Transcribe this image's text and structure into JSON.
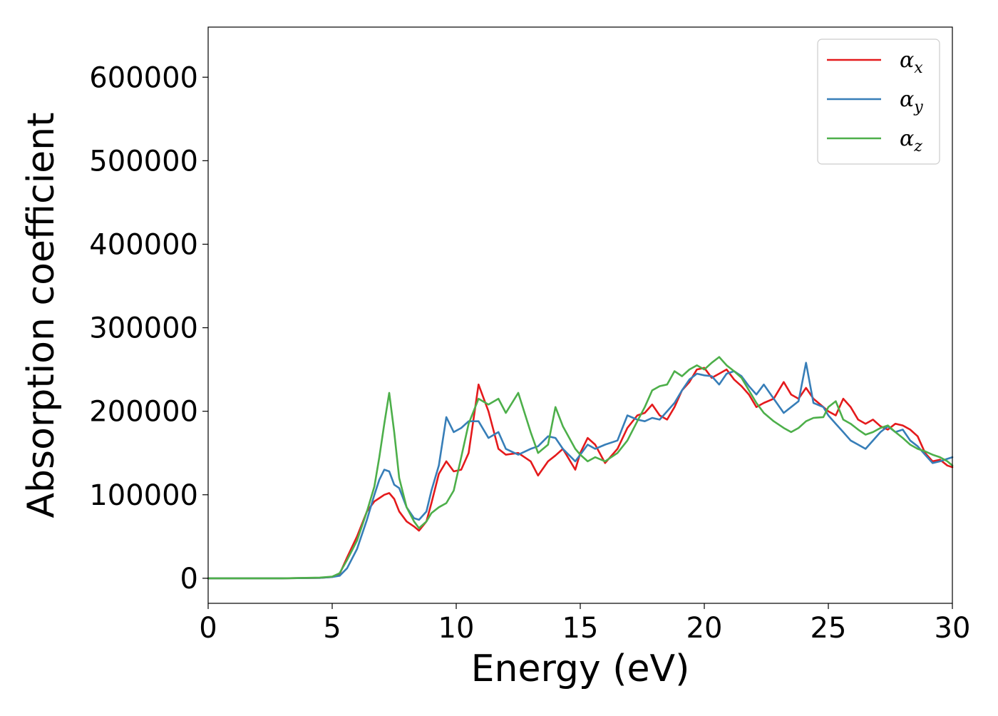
{
  "chart_data": {
    "type": "line",
    "title": "",
    "xlabel": "Energy (eV)",
    "ylabel": "Absorption coefficient",
    "xlim": [
      0,
      30
    ],
    "ylim": [
      -30000,
      660000
    ],
    "xticks": [
      0,
      5,
      10,
      15,
      20,
      25,
      30
    ],
    "xtick_labels": [
      "0",
      "5",
      "10",
      "15",
      "20",
      "25",
      "30"
    ],
    "yticks": [
      0,
      100000,
      200000,
      300000,
      400000,
      500000,
      600000
    ],
    "ytick_labels": [
      "0",
      "100000",
      "200000",
      "300000",
      "400000",
      "500000",
      "600000"
    ],
    "grid": false,
    "legend_position": "top-right",
    "series": [
      {
        "name": "αx",
        "label_base": "α",
        "label_sub": "x",
        "color": "#e41a1c",
        "x": [
          0,
          3,
          4.5,
          5.0,
          5.3,
          5.6,
          6.0,
          6.4,
          6.7,
          6.9,
          7.1,
          7.3,
          7.5,
          7.7,
          8.0,
          8.3,
          8.5,
          8.8,
          9.0,
          9.3,
          9.6,
          9.9,
          10.2,
          10.5,
          10.9,
          11.3,
          11.7,
          12.0,
          12.5,
          13.0,
          13.3,
          13.7,
          14.0,
          14.3,
          14.8,
          15.0,
          15.3,
          15.6,
          16.0,
          16.5,
          16.9,
          17.3,
          17.6,
          17.9,
          18.2,
          18.5,
          18.8,
          19.1,
          19.4,
          19.7,
          20.0,
          20.3,
          20.6,
          20.9,
          21.2,
          21.5,
          21.8,
          22.1,
          22.4,
          22.8,
          23.2,
          23.5,
          23.8,
          24.1,
          24.4,
          24.8,
          25.0,
          25.3,
          25.6,
          25.9,
          26.2,
          26.5,
          26.8,
          27.1,
          27.4,
          27.7,
          28.0,
          28.3,
          28.6,
          28.9,
          29.2,
          29.5,
          29.8,
          30.0
        ],
        "y": [
          0,
          0,
          500,
          1500,
          5000,
          25000,
          50000,
          80000,
          92000,
          96000,
          100000,
          102000,
          95000,
          80000,
          68000,
          62000,
          57000,
          68000,
          90000,
          125000,
          140000,
          128000,
          130000,
          150000,
          232000,
          200000,
          155000,
          148000,
          150000,
          140000,
          123000,
          140000,
          147000,
          155000,
          130000,
          150000,
          168000,
          160000,
          138000,
          155000,
          180000,
          195000,
          198000,
          208000,
          195000,
          190000,
          205000,
          225000,
          235000,
          250000,
          252000,
          240000,
          245000,
          250000,
          238000,
          230000,
          220000,
          205000,
          210000,
          215000,
          235000,
          220000,
          215000,
          228000,
          215000,
          205000,
          200000,
          195000,
          215000,
          205000,
          190000,
          185000,
          190000,
          182000,
          178000,
          185000,
          183000,
          178000,
          170000,
          150000,
          140000,
          142000,
          135000,
          133000
        ]
      },
      {
        "name": "αy",
        "label_base": "α",
        "label_sub": "y",
        "color": "#377eb8",
        "x": [
          0,
          3,
          4.5,
          5.0,
          5.3,
          5.6,
          6.0,
          6.4,
          6.7,
          6.9,
          7.1,
          7.3,
          7.5,
          7.7,
          8.0,
          8.3,
          8.5,
          8.8,
          9.0,
          9.3,
          9.6,
          9.9,
          10.2,
          10.5,
          10.9,
          11.3,
          11.7,
          12.0,
          12.5,
          13.0,
          13.3,
          13.7,
          14.0,
          14.3,
          14.8,
          15.0,
          15.3,
          15.6,
          16.0,
          16.5,
          16.9,
          17.3,
          17.6,
          17.9,
          18.2,
          18.5,
          18.8,
          19.1,
          19.4,
          19.7,
          20.0,
          20.3,
          20.6,
          20.9,
          21.2,
          21.5,
          21.8,
          22.1,
          22.4,
          22.8,
          23.2,
          23.5,
          23.8,
          24.1,
          24.4,
          24.8,
          25.0,
          25.3,
          25.6,
          25.9,
          26.2,
          26.5,
          26.8,
          27.1,
          27.4,
          27.7,
          28.0,
          28.3,
          28.6,
          28.9,
          29.2,
          29.5,
          29.8,
          30.0
        ],
        "y": [
          0,
          0,
          500,
          1500,
          3000,
          12000,
          35000,
          70000,
          100000,
          118000,
          130000,
          128000,
          112000,
          108000,
          85000,
          72000,
          70000,
          80000,
          105000,
          135000,
          193000,
          175000,
          180000,
          188000,
          188000,
          168000,
          175000,
          155000,
          148000,
          155000,
          158000,
          170000,
          168000,
          155000,
          140000,
          148000,
          160000,
          155000,
          160000,
          165000,
          195000,
          190000,
          188000,
          192000,
          190000,
          200000,
          210000,
          225000,
          238000,
          245000,
          243000,
          242000,
          232000,
          245000,
          248000,
          242000,
          230000,
          220000,
          232000,
          215000,
          198000,
          205000,
          212000,
          258000,
          210000,
          205000,
          195000,
          185000,
          175000,
          165000,
          160000,
          155000,
          165000,
          175000,
          182000,
          175000,
          178000,
          165000,
          158000,
          148000,
          138000,
          140000,
          143000,
          145000
        ]
      },
      {
        "name": "αz",
        "label_base": "α",
        "label_sub": "z",
        "color": "#4daf4a",
        "x": [
          0,
          3,
          4.5,
          5.0,
          5.3,
          5.6,
          6.0,
          6.4,
          6.7,
          6.9,
          7.1,
          7.3,
          7.5,
          7.7,
          8.0,
          8.3,
          8.5,
          8.8,
          9.0,
          9.3,
          9.6,
          9.9,
          10.2,
          10.5,
          10.9,
          11.3,
          11.7,
          12.0,
          12.5,
          13.0,
          13.3,
          13.7,
          14.0,
          14.3,
          14.8,
          15.0,
          15.3,
          15.6,
          16.0,
          16.5,
          16.9,
          17.3,
          17.6,
          17.9,
          18.2,
          18.5,
          18.8,
          19.1,
          19.4,
          19.7,
          20.0,
          20.3,
          20.6,
          20.9,
          21.2,
          21.5,
          21.8,
          22.1,
          22.4,
          22.8,
          23.2,
          23.5,
          23.8,
          24.1,
          24.4,
          24.8,
          25.0,
          25.3,
          25.6,
          25.9,
          26.2,
          26.5,
          26.8,
          27.1,
          27.4,
          27.7,
          28.0,
          28.3,
          28.6,
          28.9,
          29.2,
          29.5,
          29.8,
          30.0
        ],
        "y": [
          0,
          0,
          800,
          2000,
          6000,
          22000,
          45000,
          80000,
          110000,
          145000,
          185000,
          222000,
          175000,
          120000,
          85000,
          68000,
          60000,
          68000,
          78000,
          85000,
          90000,
          105000,
          145000,
          185000,
          215000,
          208000,
          215000,
          198000,
          222000,
          175000,
          150000,
          160000,
          205000,
          182000,
          155000,
          148000,
          140000,
          145000,
          140000,
          150000,
          165000,
          188000,
          205000,
          225000,
          230000,
          232000,
          248000,
          242000,
          250000,
          255000,
          250000,
          258000,
          265000,
          255000,
          248000,
          240000,
          225000,
          210000,
          198000,
          188000,
          180000,
          175000,
          180000,
          188000,
          192000,
          193000,
          205000,
          212000,
          190000,
          185000,
          178000,
          172000,
          175000,
          180000,
          183000,
          175000,
          168000,
          160000,
          155000,
          152000,
          148000,
          145000,
          140000,
          135000
        ]
      }
    ]
  }
}
